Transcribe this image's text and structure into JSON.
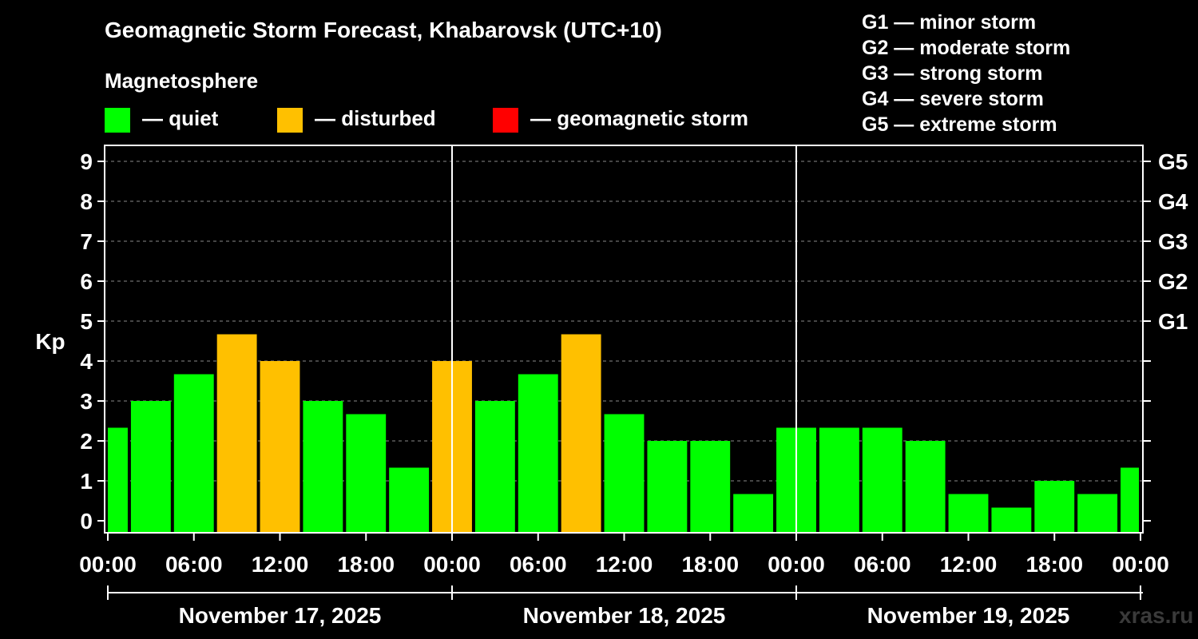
{
  "legend": {
    "heading": "Magnetosphere",
    "items": [
      {
        "label": "— quiet",
        "color": "#00ff00"
      },
      {
        "label": "— disturbed",
        "color": "#ffc000"
      },
      {
        "label": "— geomagnetic storm",
        "color": "#ff0000"
      }
    ]
  },
  "gscale": [
    "G1 — minor storm",
    "G2 — moderate storm",
    "G3 — strong storm",
    "G4 — severe storm",
    "G5 — extreme storm"
  ],
  "watermark": "xras.ru",
  "chart_data": {
    "type": "bar",
    "title": "Geomagnetic Storm Forecast, Khabarovsk (UTC+10)",
    "ylabel": "Kp",
    "ylim": [
      0,
      9
    ],
    "yticks": [
      "0",
      "1",
      "2",
      "3",
      "4",
      "5",
      "6",
      "7",
      "8",
      "9"
    ],
    "right_ticks": [
      {
        "kp": 5,
        "label": "G1"
      },
      {
        "kp": 6,
        "label": "G2"
      },
      {
        "kp": 7,
        "label": "G3"
      },
      {
        "kp": 8,
        "label": "G4"
      },
      {
        "kp": 9,
        "label": "G5"
      }
    ],
    "x_ticks": [
      "00:00",
      "06:00",
      "12:00",
      "18:00",
      "00:00",
      "06:00",
      "12:00",
      "18:00",
      "00:00",
      "06:00",
      "12:00",
      "18:00",
      "00:00"
    ],
    "days": [
      "November 17, 2025",
      "November 18, 2025",
      "November 19, 2025"
    ],
    "interval_hours": 3,
    "start_hour": -1.5,
    "values": [
      2.33,
      3.0,
      3.67,
      4.67,
      4.0,
      3.0,
      2.67,
      1.33,
      4.0,
      3.0,
      3.67,
      4.67,
      2.67,
      2.0,
      2.0,
      0.67,
      2.33,
      2.33,
      2.33,
      2.0,
      0.67,
      0.33,
      1.0,
      0.67,
      1.33
    ],
    "levels": [
      "quiet",
      "quiet",
      "quiet",
      "disturbed",
      "disturbed",
      "quiet",
      "quiet",
      "quiet",
      "disturbed",
      "quiet",
      "quiet",
      "disturbed",
      "quiet",
      "quiet",
      "quiet",
      "quiet",
      "quiet",
      "quiet",
      "quiet",
      "quiet",
      "quiet",
      "quiet",
      "quiet",
      "quiet",
      "quiet"
    ],
    "level_colors": {
      "quiet": "#00ff00",
      "disturbed": "#ffc000",
      "storm": "#ff0000"
    }
  }
}
